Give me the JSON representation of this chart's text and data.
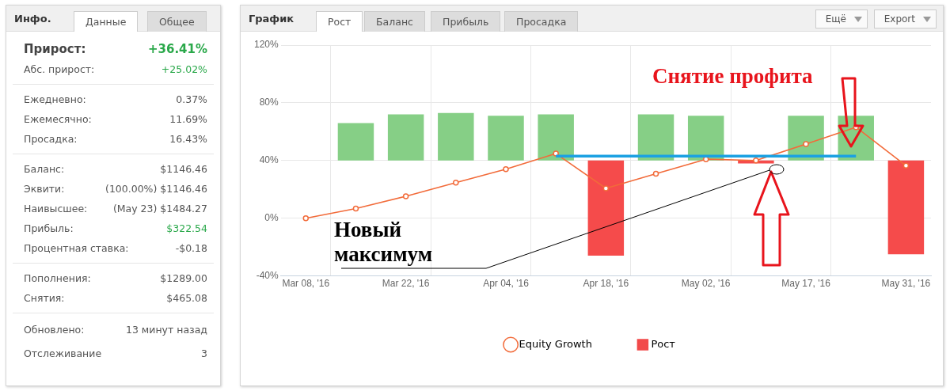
{
  "chart_data": [
    {
      "type": "other",
      "title": "Инфо.",
      "annotations": [
        "Данные",
        "Общее",
        "Прирост:",
        "+36.41%",
        "Абс. прирост:",
        "+25.02%",
        "Ежедневно:",
        "0.37%",
        "Ежемесячно:",
        "11.69%",
        "Просадка:",
        "16.43%",
        "Баланс:",
        "$1146.46",
        "Эквити:",
        "(100.00%) $1146.46",
        "Наивысшее:",
        "(May 23) $1484.27",
        "Прибыль:",
        "$322.54",
        "Процентная ставка:",
        "-$0.18",
        "Пополнения:",
        "$1289.00",
        "Снятия:",
        "$465.08",
        "Обновлено:",
        "13 минут назад",
        "Отслеживание",
        "3"
      ]
    },
    {
      "type": "line",
      "title": "График",
      "categories": [
        "Mar 08, '16",
        null,
        "Mar 22, '16",
        null,
        "Apr 04, '16",
        null,
        "Apr 18, '16",
        null,
        "May 02, '16",
        null,
        "May 17, '16",
        null,
        "May 31, '16"
      ],
      "series": [
        {
          "name": "Рост",
          "type": "bar",
          "color": "#f24a4a",
          "colors": [
            "#86cf86",
            "#86cf86",
            "#86cf86",
            "#86cf86",
            "#86cf86",
            "#86cf86",
            "#f54b4b",
            "#86cf86",
            "#86cf86",
            "#f54b4b",
            "#86cf86",
            "#86cf86",
            "#f54b4b"
          ],
          "base": [
            null,
            40,
            40,
            40,
            40,
            40,
            40,
            40,
            40,
            40,
            40,
            40,
            40
          ],
          "values": [
            null,
            26,
            32,
            33,
            31,
            32,
            -66,
            32,
            31,
            -2,
            31,
            31,
            -65
          ]
        },
        {
          "name": "Equity Growth",
          "color": "#f26b3a",
          "values": [
            0,
            6.7,
            15.2,
            24.7,
            34,
            44.8,
            20.7,
            30.8,
            40.9,
            40,
            51.4,
            63.1,
            36.4
          ]
        },
        {
          "color": "#1ba1e2",
          "marker": "none",
          "values": [
            null,
            null,
            null,
            null,
            null,
            43,
            43,
            43,
            43,
            43,
            43,
            43,
            null
          ]
        }
      ],
      "ylim": [
        -40,
        120
      ],
      "yticks": [
        {
          "value": -40,
          "label": "-40%"
        },
        {
          "value": 0,
          "label": "0%"
        },
        {
          "value": 40,
          "label": "40%"
        },
        {
          "value": 80,
          "label": "80%"
        },
        {
          "value": 120,
          "label": "120%"
        }
      ],
      "grid": true,
      "legend": "bottom",
      "marker": "circle",
      "annotations": [
        "Рост",
        "Баланс",
        "Прибыль",
        "Просадка",
        "Ещё",
        "Export",
        "Снятие профита",
        "Новый максимум"
      ]
    }
  ]
}
